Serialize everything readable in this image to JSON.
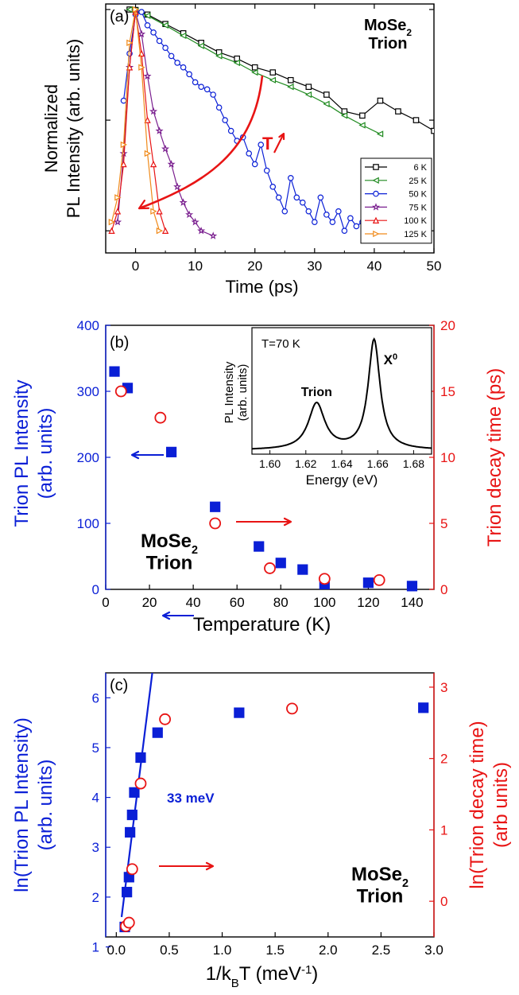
{
  "colors": {
    "axis": "#000000",
    "blue": "#0a1fd6",
    "red": "#e81414",
    "green": "#1f8a1f",
    "purple": "#7a1f8f",
    "orange": "#f08a1a"
  },
  "chart_data": [
    {
      "panel": "(a)",
      "type": "line",
      "title": "MoSe₂ Trion",
      "xlabel": "Time (ps)",
      "ylabel": "Normalized PL Intensity (arb. units)",
      "xlim": [
        -5,
        50
      ],
      "ylim_log10": [
        -2.2,
        0.05
      ],
      "y_scale": "log",
      "x_ticks": [
        0,
        10,
        20,
        30,
        40,
        50
      ],
      "annotation": "T",
      "legend_position": "bottom-right",
      "series": [
        {
          "name": "6 K",
          "color": "#000000",
          "marker": "square",
          "x": [
            -1,
            0,
            2,
            5,
            8,
            11,
            14,
            17,
            20,
            23,
            26,
            29,
            32,
            35,
            38,
            41,
            44,
            47,
            50
          ],
          "y": [
            1.0,
            0.99,
            0.9,
            0.74,
            0.61,
            0.5,
            0.41,
            0.36,
            0.3,
            0.27,
            0.23,
            0.2,
            0.17,
            0.12,
            0.11,
            0.15,
            0.12,
            0.1,
            0.08
          ]
        },
        {
          "name": "25 K",
          "color": "#1f8a1f",
          "marker": "triangle-left",
          "x": [
            -1,
            0,
            2,
            5,
            8,
            11,
            14,
            17,
            20,
            23,
            26,
            29,
            32,
            35,
            38,
            41
          ],
          "y": [
            1.0,
            0.97,
            0.88,
            0.72,
            0.58,
            0.47,
            0.38,
            0.33,
            0.27,
            0.23,
            0.2,
            0.17,
            0.14,
            0.11,
            0.09,
            0.075
          ]
        },
        {
          "name": "50 K",
          "color": "#0a1fd6",
          "marker": "circle",
          "x": [
            -2,
            -1,
            0,
            1,
            2,
            3,
            4,
            5,
            6,
            7,
            8,
            9,
            10,
            11,
            12,
            13,
            14,
            15,
            16,
            17,
            18,
            19,
            20,
            21,
            22,
            23,
            24,
            25,
            26,
            27,
            28,
            29,
            30,
            31,
            32,
            33,
            34,
            35,
            36,
            37,
            38
          ],
          "y": [
            0.15,
            0.4,
            0.9,
            0.95,
            0.72,
            0.62,
            0.52,
            0.45,
            0.38,
            0.33,
            0.3,
            0.26,
            0.22,
            0.2,
            0.19,
            0.17,
            0.13,
            0.1,
            0.08,
            0.065,
            0.07,
            0.05,
            0.04,
            0.06,
            0.035,
            0.025,
            0.02,
            0.015,
            0.03,
            0.02,
            0.018,
            0.015,
            0.012,
            0.02,
            0.014,
            0.012,
            0.015,
            0.01,
            0.013,
            0.011,
            0.012
          ]
        },
        {
          "name": "75 K",
          "color": "#7a1f8f",
          "marker": "star",
          "x": [
            -3,
            -2,
            -1,
            0,
            1,
            2,
            3,
            4,
            5,
            6,
            7,
            8,
            9,
            10,
            11,
            13
          ],
          "y": [
            0.012,
            0.05,
            0.3,
            0.95,
            0.6,
            0.25,
            0.12,
            0.08,
            0.055,
            0.04,
            0.025,
            0.018,
            0.014,
            0.012,
            0.01,
            0.009
          ]
        },
        {
          "name": "100 K",
          "color": "#e81414",
          "marker": "triangle-up",
          "x": [
            -4,
            -3,
            -2,
            -1,
            0,
            1,
            2,
            3,
            4,
            5
          ],
          "y": [
            0.01,
            0.015,
            0.04,
            0.3,
            0.95,
            0.4,
            0.1,
            0.04,
            0.015,
            0.01
          ]
        },
        {
          "name": "125 K",
          "color": "#f08a1a",
          "marker": "triangle-right",
          "x": [
            -4,
            -3,
            -2,
            -1,
            0,
            1,
            2,
            3,
            4
          ],
          "y": [
            0.012,
            0.02,
            0.06,
            0.5,
            1.0,
            0.3,
            0.05,
            0.015,
            0.01
          ]
        }
      ]
    },
    {
      "panel": "(b)",
      "type": "scatter",
      "title": "MoSe₂ Trion",
      "xlabel": "Temperature (K)",
      "ylabel_left": "Trion PL Intensity (arb. units)",
      "ylabel_right": "Trion decay time (ps)",
      "xlim": [
        0,
        150
      ],
      "ylim_left": [
        0,
        400
      ],
      "ylim_right": [
        0,
        20
      ],
      "x_ticks": [
        0,
        20,
        40,
        60,
        80,
        100,
        120,
        140
      ],
      "left_ticks": [
        0,
        100,
        200,
        300,
        400
      ],
      "right_ticks": [
        0,
        5,
        10,
        15,
        20
      ],
      "series": [
        {
          "name": "Trion PL Intensity",
          "axis": "left",
          "color": "#0a1fd6",
          "marker": "filled-square",
          "x": [
            4,
            10,
            30,
            50,
            70,
            80,
            90,
            100,
            120,
            140
          ],
          "y": [
            330,
            305,
            208,
            125,
            65,
            40,
            30,
            8,
            10,
            5
          ]
        },
        {
          "name": "Trion decay time",
          "axis": "right",
          "color": "#e81414",
          "marker": "open-circle",
          "x": [
            7,
            25,
            50,
            75,
            100,
            125
          ],
          "y": [
            15,
            13,
            5,
            1.6,
            0.8,
            0.7
          ]
        }
      ],
      "inset": {
        "type": "line",
        "annotation": "T=70 K",
        "xlabel": "Energy (eV)",
        "ylabel": "PL Intensity (arb. units)",
        "xlim": [
          1.59,
          1.69
        ],
        "x_ticks": [
          1.6,
          1.62,
          1.64,
          1.66,
          1.68
        ],
        "peaks": [
          {
            "label": "Trion",
            "center": 1.626,
            "height": 0.42,
            "width": 0.0055
          },
          {
            "label": "X⁰",
            "center": 1.658,
            "height": 1.0,
            "width": 0.004
          }
        ]
      }
    },
    {
      "panel": "(c)",
      "type": "scatter",
      "title": "MoSe₂ Trion",
      "xlabel": "1/kBT (meV⁻¹)",
      "ylabel_left": "ln(Trion PL Intensity) (arb. units)",
      "ylabel_right": "ln(Trion decay time) (arb units)",
      "xlim": [
        -0.1,
        3.0
      ],
      "ylim_left": [
        1.2,
        6.5
      ],
      "ylim_right": [
        -0.5,
        3.2
      ],
      "x_ticks": [
        0.0,
        0.5,
        1.0,
        1.5,
        2.0,
        2.5,
        3.0
      ],
      "left_ticks": [
        1,
        2,
        3,
        4,
        5,
        6
      ],
      "right_ticks": [
        0,
        1,
        2,
        3
      ],
      "fit_label": "33 meV",
      "fit_line": {
        "x": [
          0.05,
          0.34
        ],
        "y": [
          1.6,
          6.5
        ]
      },
      "series": [
        {
          "name": "ln(Trion PL Intensity)",
          "axis": "left",
          "color": "#0a1fd6",
          "marker": "filled-square",
          "x": [
            0.08,
            0.1,
            0.12,
            0.13,
            0.15,
            0.17,
            0.23,
            0.39,
            1.16,
            2.9
          ],
          "y": [
            1.4,
            2.1,
            2.4,
            3.3,
            3.65,
            4.1,
            4.8,
            5.3,
            5.7,
            5.8
          ]
        },
        {
          "name": "ln(Trion decay time)",
          "axis": "right",
          "color": "#e81414",
          "marker": "open-circle",
          "x": [
            0.09,
            0.12,
            0.15,
            0.23,
            0.46,
            1.66
          ],
          "y": [
            -0.35,
            -0.3,
            0.45,
            1.65,
            2.55,
            2.7
          ]
        }
      ]
    }
  ]
}
